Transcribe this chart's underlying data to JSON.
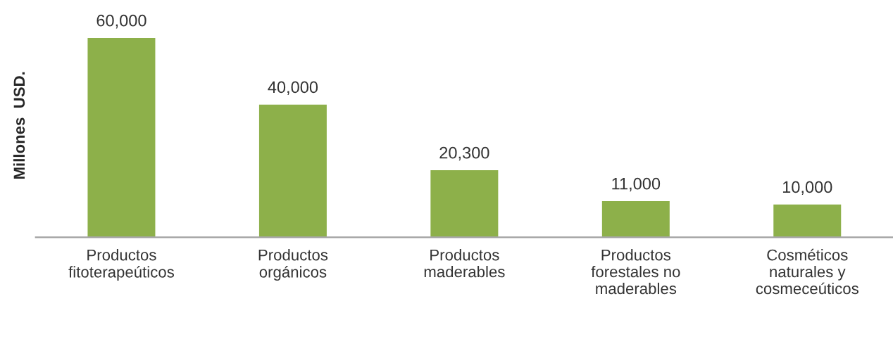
{
  "chart_data": {
    "type": "bar",
    "ylabel": "Millones  USD.",
    "categories": [
      "Productos\nfitoterapeúticos",
      "Productos\norgánicos",
      "Productos\nmaderables",
      "Productos\nforestales no\nmaderables",
      "Cosméticos\nnaturales y\ncosmeceúticos"
    ],
    "values": [
      60000,
      40000,
      20300,
      11000,
      10000
    ],
    "value_labels": [
      "60,000",
      "40,000",
      "20,300",
      "11,000",
      "10,000"
    ],
    "color": "#8db04a",
    "grid": false,
    "legend": false
  }
}
